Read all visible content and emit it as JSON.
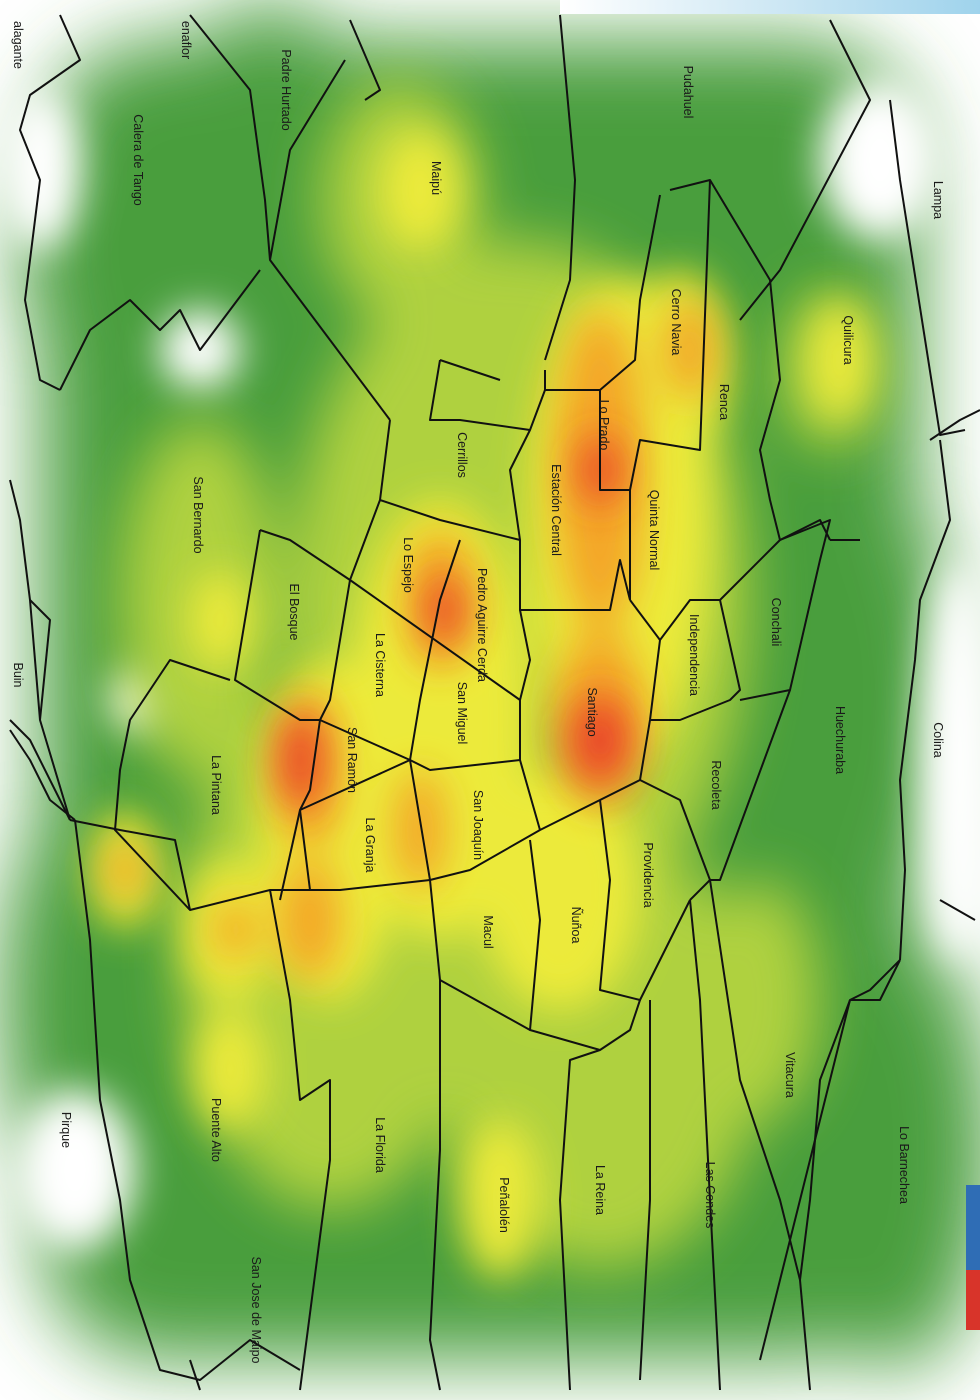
{
  "map": {
    "communes": [
      {
        "id": "pudahuel",
        "name": "Pudahuel"
      },
      {
        "id": "lampa",
        "name": "Lampa"
      },
      {
        "id": "quilicura",
        "name": "Quilicura"
      },
      {
        "id": "colina",
        "name": "Colina"
      },
      {
        "id": "huechuraba",
        "name": "Huechuraba"
      },
      {
        "id": "lo-barnechea",
        "name": "Lo Barnechea"
      },
      {
        "id": "vitacura",
        "name": "Vitacura"
      },
      {
        "id": "las-condes",
        "name": "Las Condes"
      },
      {
        "id": "recoleta",
        "name": "Recoleta"
      },
      {
        "id": "conchali",
        "name": "Conchali"
      },
      {
        "id": "renca",
        "name": "Renca"
      },
      {
        "id": "cerro-navia",
        "name": "Cerro Navia"
      },
      {
        "id": "independencia",
        "name": "Independencia"
      },
      {
        "id": "quinta-normal",
        "name": "Quinta Normal"
      },
      {
        "id": "lo-prado",
        "name": "Lo Prado"
      },
      {
        "id": "santiago",
        "name": "Santiago"
      },
      {
        "id": "providencia",
        "name": "Providencia"
      },
      {
        "id": "nunoa",
        "name": "Ñuñoa"
      },
      {
        "id": "la-reina",
        "name": "La Reina"
      },
      {
        "id": "estacion-central",
        "name": "Estación Central"
      },
      {
        "id": "maipu",
        "name": "Maipú"
      },
      {
        "id": "cerrillos",
        "name": "Cerrillos"
      },
      {
        "id": "pedro-aguirre-cerda",
        "name": "Pedro Aguirre Cerda"
      },
      {
        "id": "san-miguel",
        "name": "San Miguel"
      },
      {
        "id": "san-joaquin",
        "name": "San Joaquín"
      },
      {
        "id": "macul",
        "name": "Macul"
      },
      {
        "id": "penalolen",
        "name": "Peñalolén"
      },
      {
        "id": "la-florida",
        "name": "La Florida"
      },
      {
        "id": "la-granja",
        "name": "La Granja"
      },
      {
        "id": "san-ramon",
        "name": "San Ramón"
      },
      {
        "id": "la-cisterna",
        "name": "La Cisterna"
      },
      {
        "id": "lo-espejo",
        "name": "Lo Espejo"
      },
      {
        "id": "el-bosque",
        "name": "El Bosque"
      },
      {
        "id": "la-pintana",
        "name": "La Pintana"
      },
      {
        "id": "puente-alto",
        "name": "Puente Alto"
      },
      {
        "id": "san-jose-de-maipo",
        "name": "San Jose de Maipo"
      },
      {
        "id": "pirque",
        "name": "Pirque"
      },
      {
        "id": "buin",
        "name": "Buin"
      },
      {
        "id": "san-bernardo",
        "name": "San Bernardo"
      },
      {
        "id": "calera-de-tango",
        "name": "Calera de Tango"
      },
      {
        "id": "padre-hurtado",
        "name": "Padre Hurtado"
      },
      {
        "id": "penaflor",
        "name": "enaflor"
      },
      {
        "id": "talagante",
        "name": "alagante"
      }
    ],
    "colors": {
      "low": "#3f9a3a",
      "mid": "#b9d640",
      "high": "#f2ee3c",
      "very_high": "#f5a623",
      "peak": "#e8322a",
      "boundary": "#111111",
      "background": "#ffffff"
    }
  }
}
